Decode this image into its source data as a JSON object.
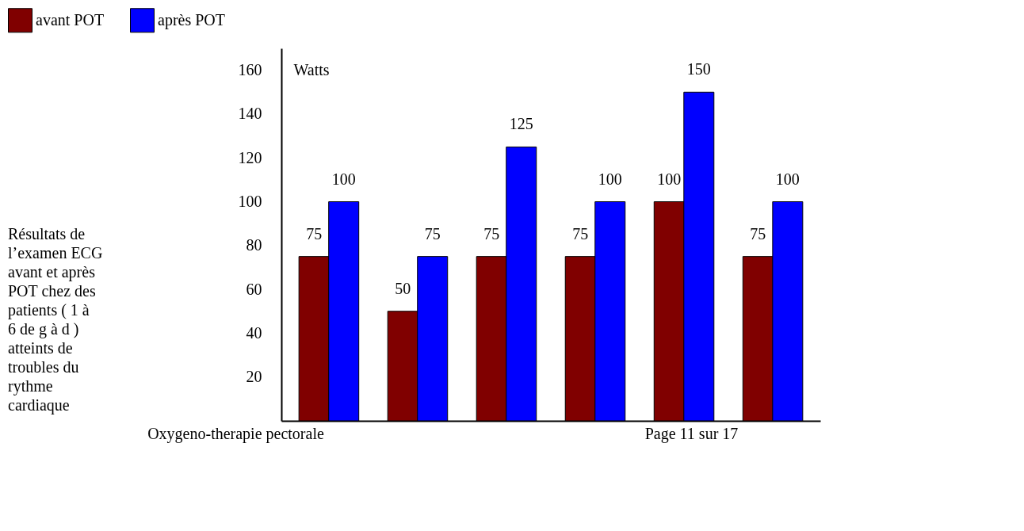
{
  "chart_data": {
    "type": "bar",
    "title": "Résultats de l’examen ECG avant et après POT chez des patients ( 1 à 6 de g à d ) atteints de troubles du rythme cardiaque",
    "ylabel": "Watts",
    "categories": [
      null,
      null,
      null,
      null,
      null,
      null
    ],
    "series": [
      {
        "name": "avant POT",
        "color": "#800000",
        "values": [
          75,
          50,
          75,
          75,
          100,
          75
        ]
      },
      {
        "name": "après POT",
        "color": "#0000ff",
        "values": [
          100,
          75,
          125,
          100,
          150,
          100
        ]
      }
    ],
    "ylim": [
      0,
      170
    ],
    "yticks": [
      20,
      40,
      60,
      80,
      100,
      120,
      140,
      160
    ],
    "data_labels": true,
    "grid": false,
    "legend": "top",
    "annotations": [
      "Oxygeno-therapie pectorale",
      "Page 11 sur 17"
    ]
  }
}
